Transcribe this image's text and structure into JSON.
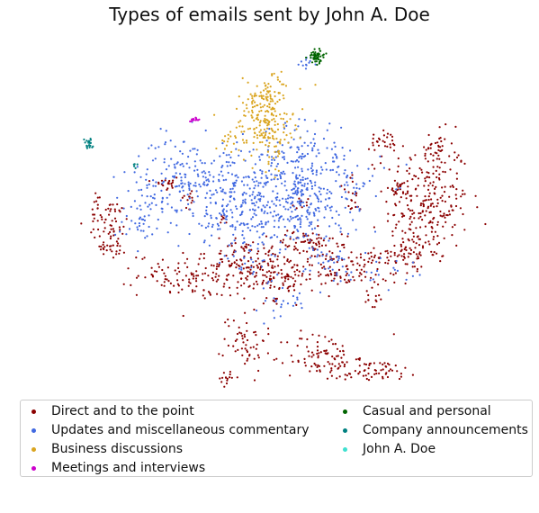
{
  "chart_data": {
    "type": "scatter",
    "title": "Types of emails sent by John A. Doe",
    "xlabel": "",
    "ylabel": "",
    "axes_visible": false,
    "legend_position": "bottom",
    "series": [
      {
        "name": "Direct and to the point",
        "color": "#8b0000",
        "clusters": [
          {
            "x": 7.8,
            "y": 3.4,
            "sx": 0.5,
            "sy": 0.9,
            "n": 260
          },
          {
            "x": 7.3,
            "y": 1.9,
            "sx": 0.35,
            "sy": 0.35,
            "n": 70
          },
          {
            "x": 7.2,
            "y": 3.8,
            "sx": 0.1,
            "sy": 0.1,
            "n": 15
          },
          {
            "x": 5.9,
            "y": 1.4,
            "sx": 0.5,
            "sy": 0.3,
            "n": 90
          },
          {
            "x": 5.5,
            "y": 1.8,
            "sx": 0.2,
            "sy": 0.3,
            "n": 25
          },
          {
            "x": 6.1,
            "y": 3.5,
            "sx": 0.15,
            "sy": 0.3,
            "n": 18
          },
          {
            "x": 6.8,
            "y": 5.0,
            "sx": 0.25,
            "sy": 0.2,
            "n": 30
          },
          {
            "x": 8.1,
            "y": 5.0,
            "sx": 0.15,
            "sy": 0.15,
            "n": 20
          },
          {
            "x": 2.4,
            "y": 1.3,
            "sx": 0.7,
            "sy": 0.3,
            "n": 130
          },
          {
            "x": 3.9,
            "y": 1.5,
            "sx": 0.6,
            "sy": 0.35,
            "n": 130
          },
          {
            "x": 4.9,
            "y": 2.2,
            "sx": 0.35,
            "sy": 0.2,
            "n": 55
          },
          {
            "x": 3.5,
            "y": -0.5,
            "sx": 0.25,
            "sy": 0.45,
            "n": 55
          },
          {
            "x": 3.1,
            "y": -1.6,
            "sx": 0.12,
            "sy": 0.12,
            "n": 15
          },
          {
            "x": 4.5,
            "y": 1.1,
            "sx": 0.25,
            "sy": 0.15,
            "n": 30
          },
          {
            "x": 5.3,
            "y": -1.0,
            "sx": 0.4,
            "sy": 0.35,
            "n": 85
          },
          {
            "x": 6.5,
            "y": -1.4,
            "sx": 0.6,
            "sy": 0.15,
            "n": 65
          },
          {
            "x": 0.3,
            "y": 2.8,
            "sx": 0.25,
            "sy": 0.3,
            "n": 55
          },
          {
            "x": 0.4,
            "y": 2.1,
            "sx": 0.15,
            "sy": 0.15,
            "n": 25
          },
          {
            "x": 0.0,
            "y": 3.4,
            "sx": 0.05,
            "sy": 0.1,
            "n": 8
          },
          {
            "x": 1.6,
            "y": 3.9,
            "sx": 0.2,
            "sy": 0.08,
            "n": 20
          },
          {
            "x": 2.2,
            "y": 3.5,
            "sx": 0.1,
            "sy": 0.15,
            "n": 12
          },
          {
            "x": 3.0,
            "y": 2.9,
            "sx": 0.05,
            "sy": 0.1,
            "n": 8
          },
          {
            "x": 4.8,
            "y": 3.3,
            "sx": 0.1,
            "sy": 0.1,
            "n": 10
          },
          {
            "x": 6.6,
            "y": 0.6,
            "sx": 0.1,
            "sy": 0.1,
            "n": 10
          },
          {
            "x": 3.3,
            "y": 2.1,
            "sx": 0.2,
            "sy": 0.15,
            "n": 20
          },
          {
            "x": 4.2,
            "y": 0.6,
            "sx": 0.08,
            "sy": 0.05,
            "n": 8
          }
        ]
      },
      {
        "name": "Updates and miscellaneous commentary",
        "color": "#4169e1",
        "clusters": [
          {
            "x": 4.3,
            "y": 3.6,
            "sx": 0.8,
            "sy": 0.8,
            "n": 360
          },
          {
            "x": 2.2,
            "y": 4.2,
            "sx": 0.6,
            "sy": 0.5,
            "n": 160
          },
          {
            "x": 3.2,
            "y": 2.9,
            "sx": 0.5,
            "sy": 0.4,
            "n": 80
          },
          {
            "x": 5.6,
            "y": 3.5,
            "sx": 0.6,
            "sy": 0.8,
            "n": 95
          },
          {
            "x": 5.0,
            "y": 4.7,
            "sx": 0.5,
            "sy": 0.4,
            "n": 60
          },
          {
            "x": 1.3,
            "y": 3.3,
            "sx": 0.5,
            "sy": 0.5,
            "n": 60
          },
          {
            "x": 5.5,
            "y": 1.5,
            "sx": 0.4,
            "sy": 0.3,
            "n": 30
          },
          {
            "x": 4.4,
            "y": 0.6,
            "sx": 0.3,
            "sy": 0.3,
            "n": 25
          },
          {
            "x": 5.0,
            "y": 2.9,
            "sx": 0.2,
            "sy": 0.5,
            "n": 30
          },
          {
            "x": 3.6,
            "y": 1.7,
            "sx": 0.3,
            "sy": 0.3,
            "n": 20
          },
          {
            "x": 5.0,
            "y": 7.3,
            "sx": 0.1,
            "sy": 0.1,
            "n": 12
          },
          {
            "x": 1.0,
            "y": 2.8,
            "sx": 0.2,
            "sy": 0.2,
            "n": 15
          },
          {
            "x": 7.0,
            "y": 1.3,
            "sx": 0.3,
            "sy": 0.3,
            "n": 15
          }
        ]
      },
      {
        "name": "Business discussions",
        "color": "#daa520",
        "clusters": [
          {
            "x": 3.9,
            "y": 5.6,
            "sx": 0.35,
            "sy": 0.5,
            "n": 160
          },
          {
            "x": 4.1,
            "y": 6.4,
            "sx": 0.3,
            "sy": 0.3,
            "n": 60
          },
          {
            "x": 4.3,
            "y": 4.9,
            "sx": 0.1,
            "sy": 0.4,
            "n": 25
          },
          {
            "x": 3.0,
            "y": 5.1,
            "sx": 0.15,
            "sy": 0.15,
            "n": 12
          }
        ]
      },
      {
        "name": "Meetings and interviews",
        "color": "#cc00cc",
        "clusters": [
          {
            "x": 2.3,
            "y": 5.7,
            "sx": 0.07,
            "sy": 0.03,
            "n": 14
          }
        ]
      },
      {
        "name": "Casual and personal",
        "color": "#006400",
        "clusters": [
          {
            "x": 5.2,
            "y": 7.5,
            "sx": 0.1,
            "sy": 0.1,
            "n": 60
          }
        ]
      },
      {
        "name": "Company announcements",
        "color": "#008080",
        "clusters": [
          {
            "x": -0.2,
            "y": 5.0,
            "sx": 0.05,
            "sy": 0.08,
            "n": 22
          },
          {
            "x": 0.9,
            "y": 4.4,
            "sx": 0.03,
            "sy": 0.03,
            "n": 5
          }
        ]
      },
      {
        "name": "John A. Doe",
        "color": "#40e0d0",
        "clusters": []
      }
    ],
    "xlim": [
      -0.8,
      9.2
    ],
    "ylim": [
      -2.0,
      8.2
    ]
  }
}
